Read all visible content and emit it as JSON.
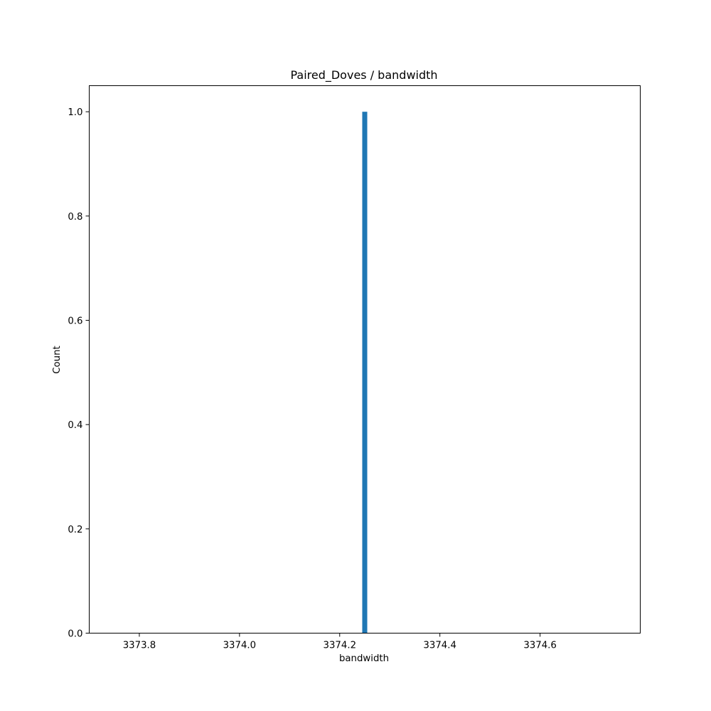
{
  "chart_data": {
    "type": "bar",
    "title": "Paired_Doves / bandwidth",
    "xlabel": "bandwidth",
    "ylabel": "Count",
    "xlim": [
      3373.7,
      3374.8
    ],
    "ylim": [
      0,
      1.05
    ],
    "xticks": [
      3373.8,
      3374.0,
      3374.2,
      3374.4,
      3374.6
    ],
    "xtick_labels": [
      "3373.8",
      "3374.0",
      "3374.2",
      "3374.4",
      "3374.6"
    ],
    "yticks": [
      0.0,
      0.2,
      0.4,
      0.6,
      0.8,
      1.0
    ],
    "ytick_labels": [
      "0.0",
      "0.2",
      "0.4",
      "0.6",
      "0.8",
      "1.0"
    ],
    "bins": [
      {
        "x_start": 3374.245,
        "x_end": 3374.255,
        "count": 1
      }
    ],
    "grid": false,
    "colors": {
      "bar": "#1f77b4"
    }
  }
}
